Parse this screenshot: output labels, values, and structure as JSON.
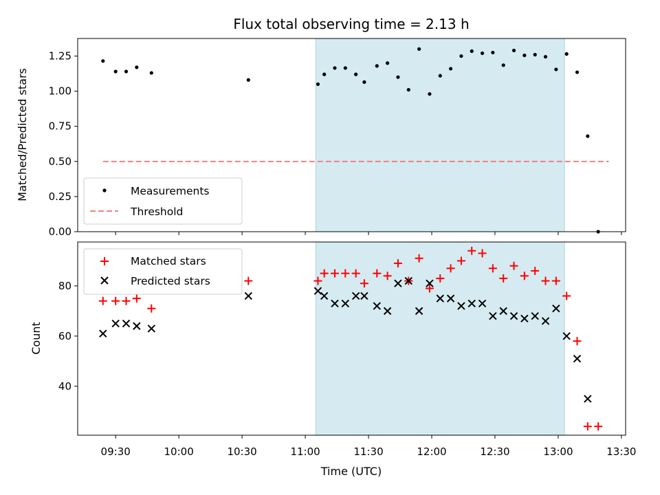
{
  "chart_data": {
    "type": "scatter",
    "title": "Flux total observing time = 2.13 h",
    "xlabel": "Time (UTC)",
    "x_unit": "minutes since 00:00 UTC",
    "xlim": [
      552,
      812
    ],
    "xticks": [
      570,
      600,
      630,
      660,
      690,
      720,
      750,
      780,
      810
    ],
    "xtick_labels": [
      "09:30",
      "10:00",
      "10:30",
      "11:00",
      "11:30",
      "12:00",
      "12:30",
      "13:00",
      "13:30"
    ],
    "shaded_interval": [
      665,
      783
    ],
    "colors": {
      "shade": "#d5ebf1",
      "shade_edge": "#a9d3df",
      "matched": "#ff0000",
      "predicted": "#000000",
      "threshold": "#f08080",
      "measurement": "#000000"
    },
    "panels": [
      {
        "id": "ratio",
        "ylabel": "Matched/Predicted stars",
        "ylim": [
          0,
          1.375
        ],
        "yticks": [
          0,
          0.25,
          0.5,
          0.75,
          1.0,
          1.25
        ],
        "ytick_labels": [
          "0.00",
          "0.25",
          "0.50",
          "0.75",
          "1.00",
          "1.25"
        ],
        "legend": [
          "Measurements",
          "Threshold"
        ],
        "threshold": {
          "name": "Threshold",
          "y": 0.5,
          "x_range": [
            564,
            804
          ]
        },
        "series": [
          {
            "name": "Measurements",
            "marker": "dot",
            "x": [
              564,
              570,
              575,
              580,
              587,
              633,
              666,
              669,
              674,
              679,
              684,
              688,
              694,
              699,
              704,
              709,
              714,
              719,
              724,
              729,
              734,
              739,
              744,
              749,
              754,
              759,
              764,
              769,
              774,
              779,
              784,
              789,
              794
            ],
            "y": [
              1.215,
              1.14,
              1.14,
              1.17,
              1.13,
              1.08,
              1.05,
              1.12,
              1.165,
              1.165,
              1.12,
              1.065,
              1.18,
              1.2,
              1.1,
              1.01,
              1.3,
              0.98,
              1.11,
              1.16,
              1.25,
              1.285,
              1.27,
              1.275,
              1.185,
              1.29,
              1.255,
              1.26,
              1.245,
              1.155,
              1.265,
              1.135,
              0.68
            ]
          },
          {
            "name": "Measurements (zero point)",
            "marker": "dot",
            "x": [
              799
            ],
            "y": [
              0.0
            ]
          }
        ]
      },
      {
        "id": "counts",
        "ylabel": "Count",
        "ylim": [
          20.5,
          97.5
        ],
        "yticks": [
          40,
          60,
          80
        ],
        "ytick_labels": [
          "40",
          "60",
          "80"
        ],
        "legend": [
          "Matched stars",
          "Predicted stars"
        ],
        "series": [
          {
            "name": "Matched stars",
            "marker": "plus",
            "x": [
              564,
              570,
              575,
              580,
              587,
              633,
              666,
              669,
              674,
              679,
              684,
              688,
              694,
              699,
              704,
              709,
              714,
              719,
              724,
              729,
              734,
              739,
              744,
              749,
              754,
              759,
              764,
              769,
              774,
              779,
              784,
              789,
              794,
              799
            ],
            "y": [
              74,
              74,
              74,
              75,
              71,
              82,
              82,
              85,
              85,
              85,
              85,
              81,
              85,
              84,
              89,
              82,
              91,
              79,
              83,
              87,
              90,
              94,
              93,
              87,
              83,
              88,
              84,
              86,
              82,
              82,
              76,
              58,
              24,
              24
            ]
          },
          {
            "name": "Predicted stars",
            "marker": "x",
            "x": [
              564,
              570,
              575,
              580,
              587,
              633,
              666,
              669,
              674,
              679,
              684,
              688,
              694,
              699,
              704,
              709,
              714,
              719,
              724,
              729,
              734,
              739,
              744,
              749,
              754,
              759,
              764,
              769,
              774,
              779,
              784,
              789,
              794
            ],
            "y": [
              61,
              65,
              65,
              64,
              63,
              76,
              78,
              76,
              73,
              73,
              76,
              76,
              72,
              70,
              81,
              82,
              70,
              81,
              75,
              75,
              72,
              73,
              73,
              68,
              70,
              68,
              67,
              68,
              66,
              71,
              60,
              51,
              35
            ]
          }
        ]
      }
    ]
  }
}
